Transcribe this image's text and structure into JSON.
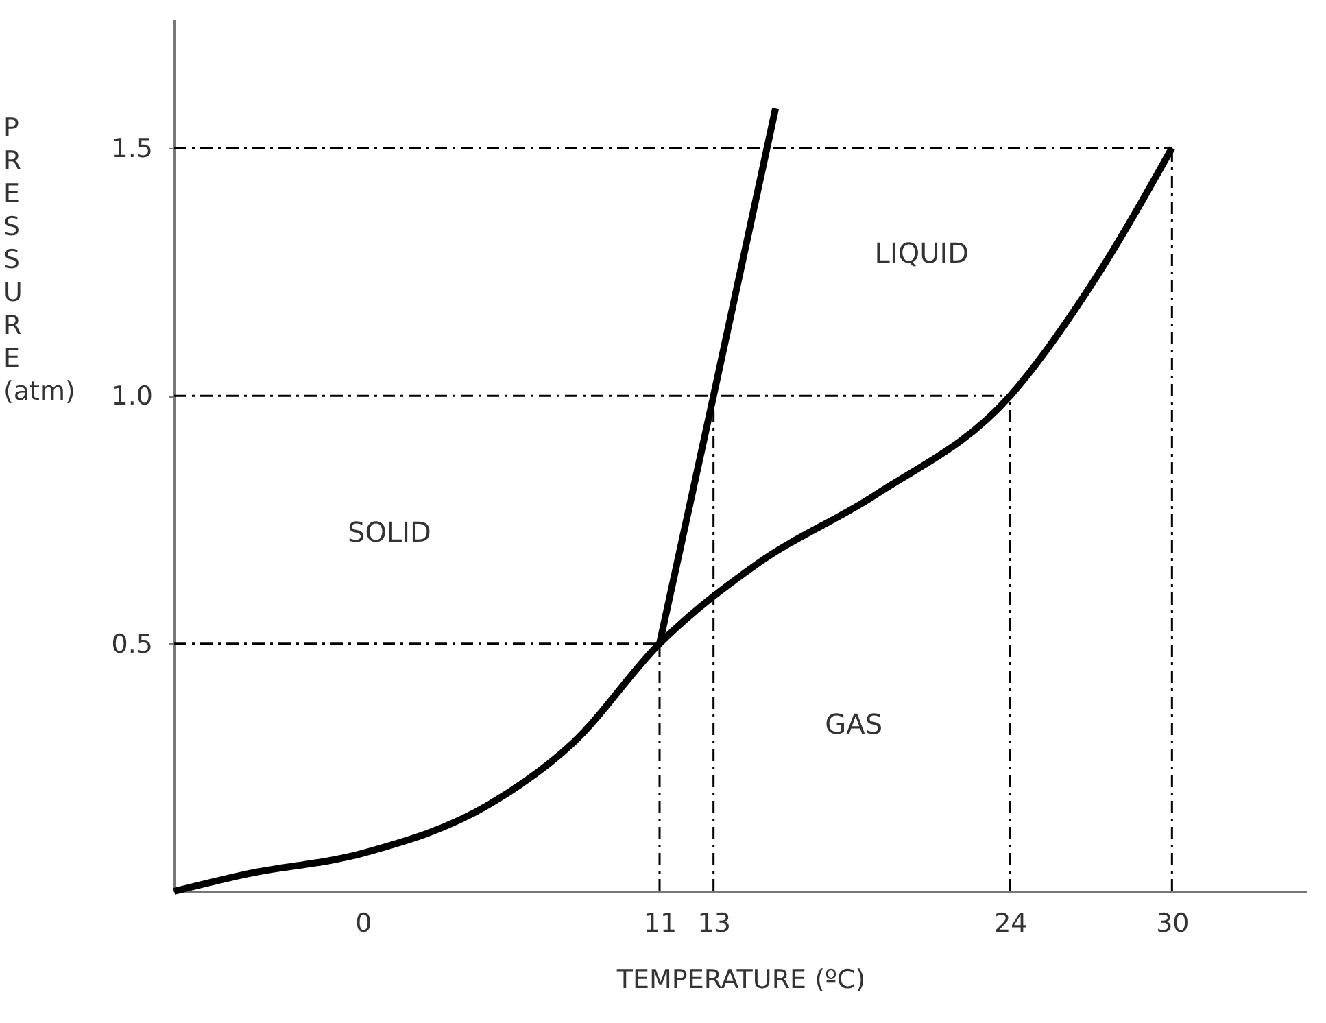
{
  "chart_data": {
    "type": "line",
    "xlabel": "TEMPERATURE (ºC)",
    "ylabel": "PRESSURE (atm)",
    "xlim": [
      -7,
      35
    ],
    "ylim": [
      0,
      1.76
    ],
    "xticks": [
      0,
      11,
      13,
      24,
      30
    ],
    "yticks": [
      0.5,
      {
        "value": 1.0,
        "label": "1.0"
      },
      1.5
    ],
    "grid": false,
    "marker": "none",
    "line_style": "solid",
    "series": [
      {
        "color": "#000000",
        "x": [
          -7,
          -4.3,
          0,
          4.7,
          7.8,
          11,
          14.6,
          19,
          24,
          27.2,
          30
        ],
        "values": [
          0,
          0.035,
          0.077,
          0.176,
          0.3,
          0.5,
          0.66,
          0.8,
          1.0,
          1.24,
          1.5
        ]
      },
      {
        "color": "#000000",
        "x": [
          11,
          13,
          15.3
        ],
        "values": [
          0.5,
          1.0,
          1.58
        ]
      }
    ],
    "ref_lines": [
      {
        "axis": "y",
        "value": 1.5
      },
      {
        "axis": "y",
        "value": 1.0
      },
      {
        "axis": "y",
        "value": 0.5
      },
      {
        "axis": "x",
        "value": 11
      },
      {
        "axis": "x",
        "value": 13
      },
      {
        "axis": "x",
        "value": 24
      },
      {
        "axis": "x",
        "value": 30
      }
    ],
    "annotations": [
      "SOLID",
      "LIQUID",
      "GAS"
    ]
  }
}
